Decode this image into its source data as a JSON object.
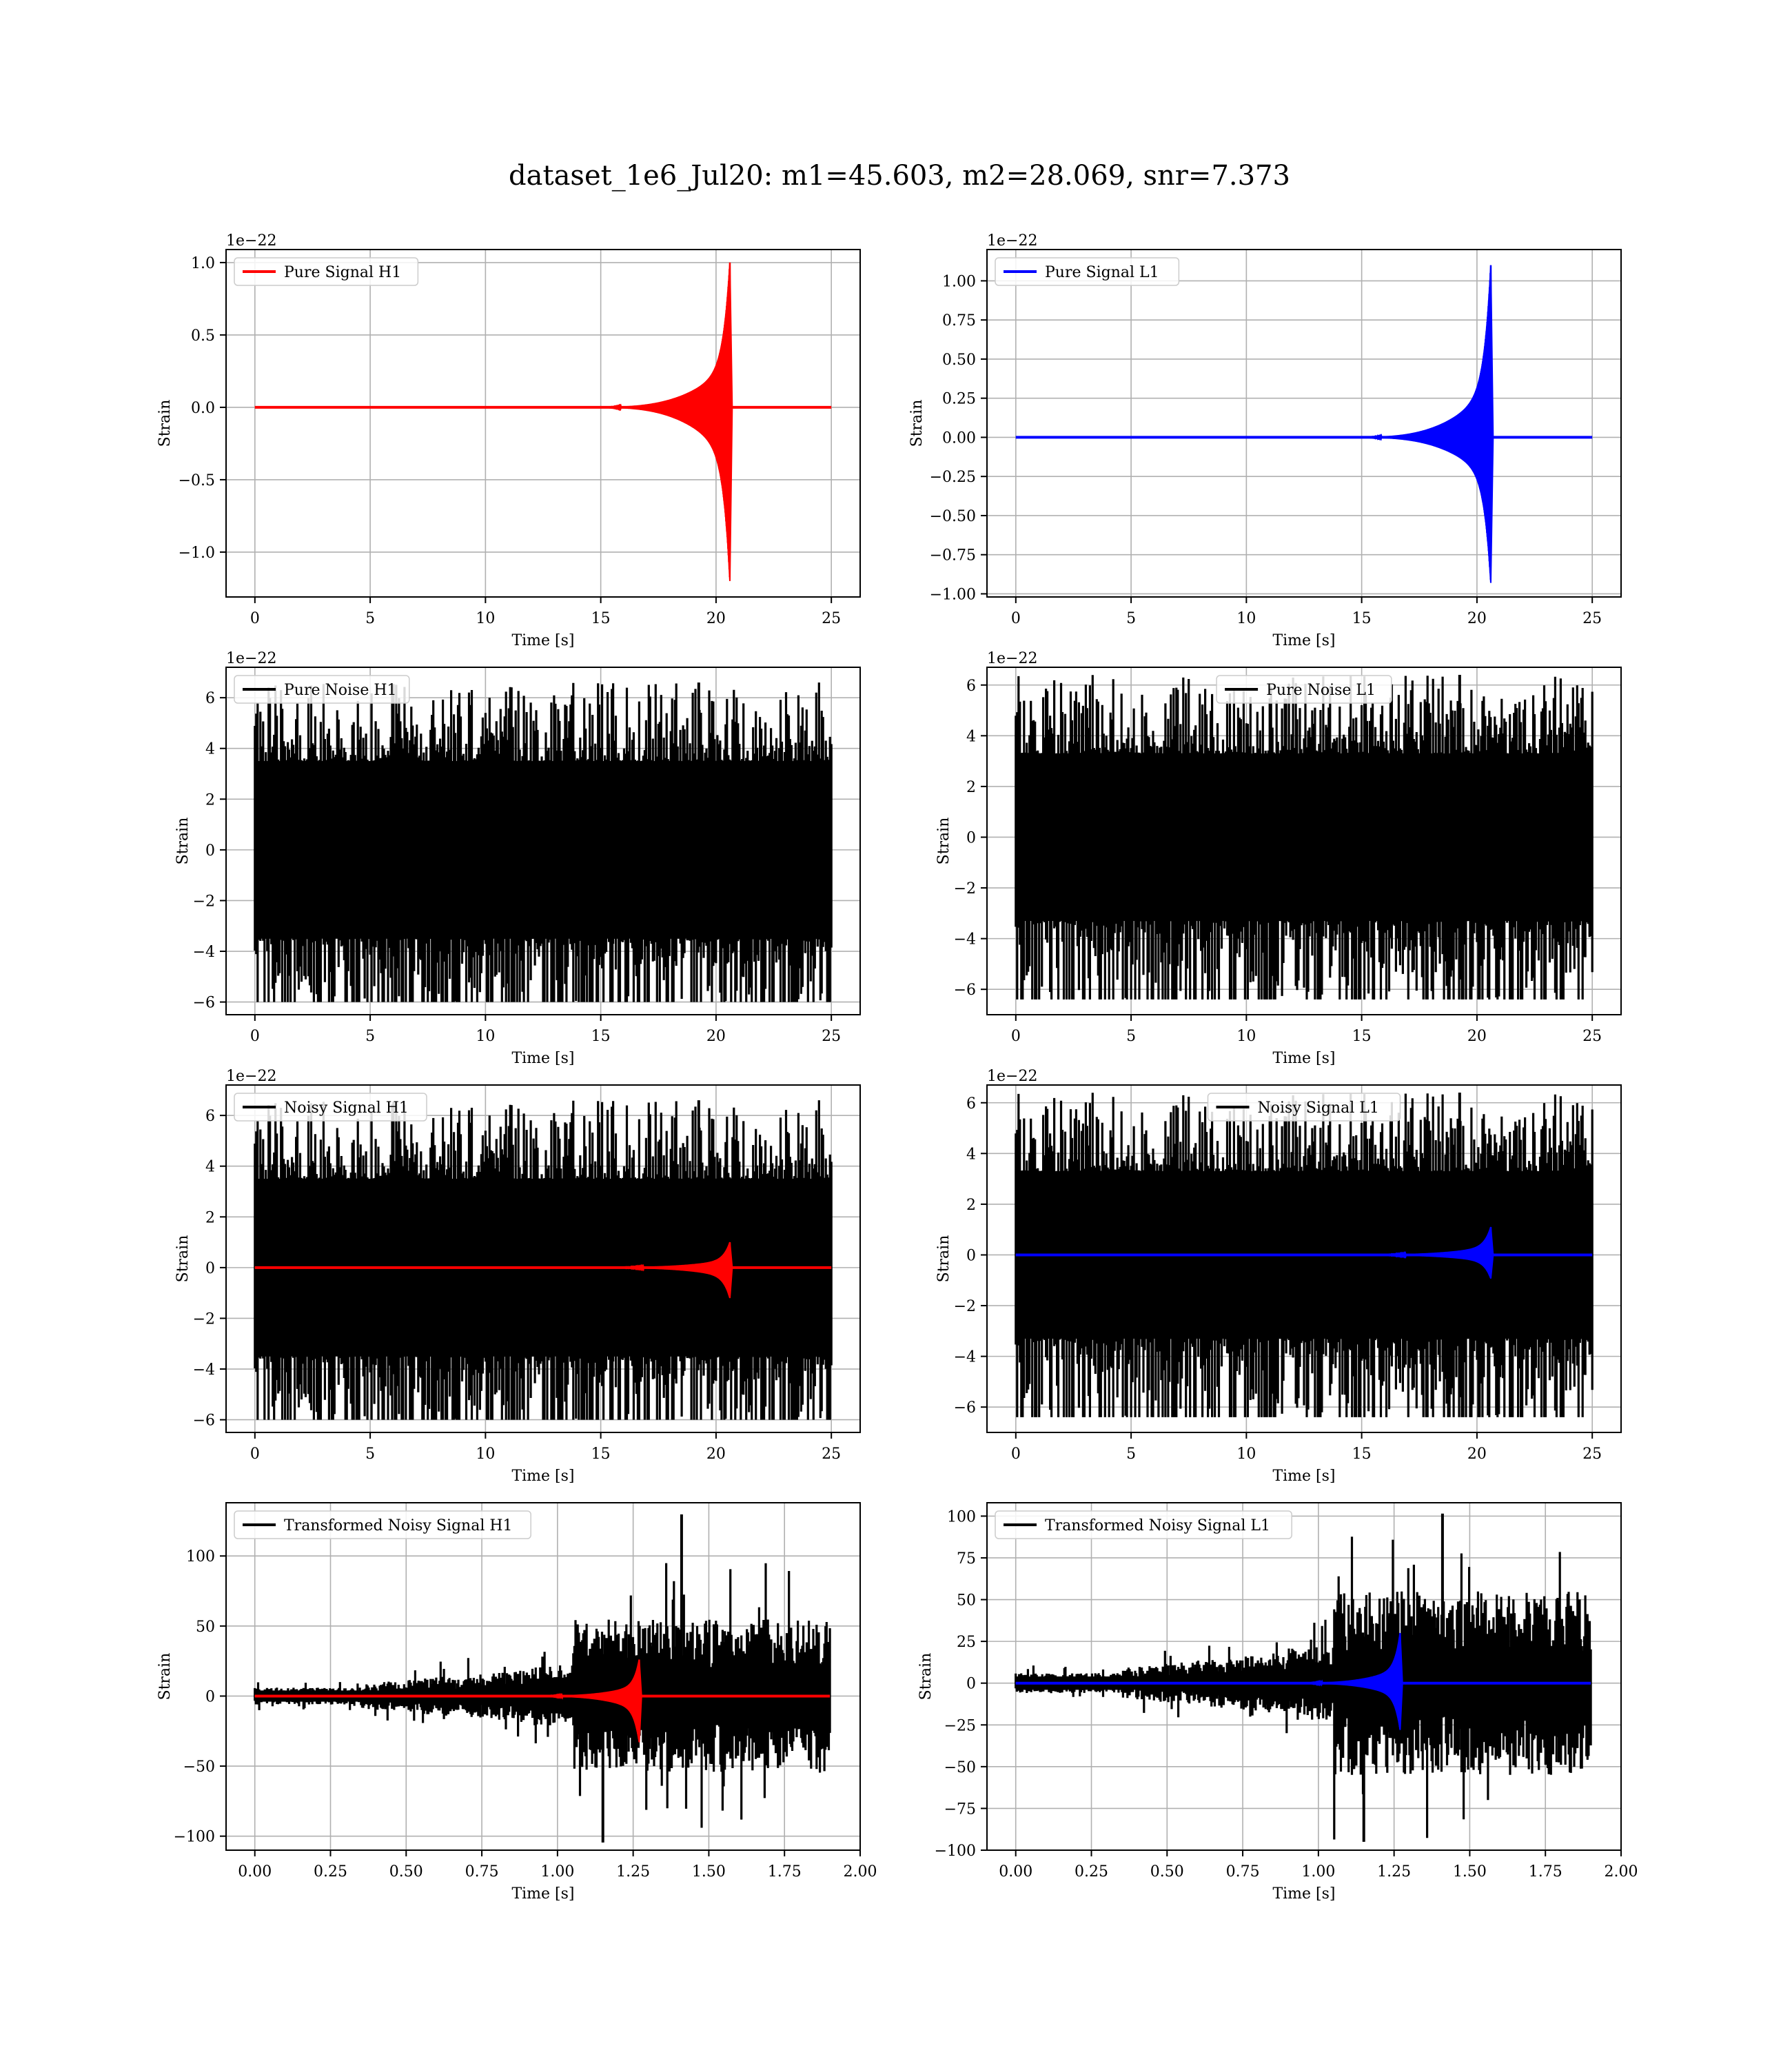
{
  "figure": {
    "title": "dataset_1e6_Jul20: m1=45.603, m2=28.069, snr=7.373"
  },
  "colors": {
    "h1": "#ff0000",
    "l1": "#0000ff",
    "noise": "#000000",
    "grid": "#b0b0b0"
  },
  "chart_data": [
    {
      "type": "line",
      "legend": "Pure Signal H1",
      "legend_placement": "upper-left",
      "xlabel": "Time [s]",
      "ylabel": "Strain",
      "offset_text": "1e−22",
      "xlim": [
        -1.25,
        26.25
      ],
      "ylim": [
        -1.31,
        1.09
      ],
      "xticks": [
        0,
        5,
        10,
        15,
        20,
        25
      ],
      "xtick_labels": [
        "0",
        "5",
        "10",
        "15",
        "20",
        "25"
      ],
      "yticks": [
        -1.0,
        -0.5,
        0.0,
        0.5,
        1.0
      ],
      "ytick_labels": [
        "−1.0",
        "−0.5",
        "0.0",
        "0.5",
        "1.0"
      ],
      "grid": true,
      "series": [
        {
          "name": "Pure Signal H1",
          "color": "#ff0000",
          "kind": "chirp",
          "x_range": [
            0,
            25
          ],
          "t_start": 14.5,
          "t_merge": 20.6,
          "peak_pos": 1.0,
          "peak_neg": -1.2,
          "seed": 11
        }
      ]
    },
    {
      "type": "line",
      "legend": "Pure Signal L1",
      "legend_placement": "upper-left",
      "xlabel": "Time [s]",
      "ylabel": "Strain",
      "offset_text": "1e−22",
      "xlim": [
        -1.25,
        26.25
      ],
      "ylim": [
        -1.02,
        1.2
      ],
      "xticks": [
        0,
        5,
        10,
        15,
        20,
        25
      ],
      "xtick_labels": [
        "0",
        "5",
        "10",
        "15",
        "20",
        "25"
      ],
      "yticks": [
        -1.0,
        -0.75,
        -0.5,
        -0.25,
        0.0,
        0.25,
        0.5,
        0.75,
        1.0
      ],
      "ytick_labels": [
        "−1.00",
        "−0.75",
        "−0.50",
        "−0.25",
        "0.00",
        "0.25",
        "0.50",
        "0.75",
        "1.00"
      ],
      "grid": true,
      "series": [
        {
          "name": "Pure Signal L1",
          "color": "#0000ff",
          "kind": "chirp",
          "x_range": [
            0,
            25
          ],
          "t_start": 14.5,
          "t_merge": 20.6,
          "peak_pos": 1.1,
          "peak_neg": -0.93,
          "seed": 12
        }
      ]
    },
    {
      "type": "line",
      "legend": "Pure Noise H1",
      "legend_placement": "upper-left",
      "xlabel": "Time [s]",
      "ylabel": "Strain",
      "offset_text": "1e−22",
      "xlim": [
        -1.25,
        26.25
      ],
      "ylim": [
        -6.5,
        7.2
      ],
      "xticks": [
        0,
        5,
        10,
        15,
        20,
        25
      ],
      "xtick_labels": [
        "0",
        "5",
        "10",
        "15",
        "20",
        "25"
      ],
      "yticks": [
        -6,
        -4,
        -2,
        0,
        2,
        4,
        6
      ],
      "ytick_labels": [
        "−6",
        "−4",
        "−2",
        "0",
        "2",
        "4",
        "6"
      ],
      "grid": true,
      "series": [
        {
          "name": "Pure Noise H1",
          "color": "#000000",
          "kind": "noise",
          "x_range": [
            0,
            25
          ],
          "core_amp": 3.5,
          "max_pos": 6.6,
          "max_neg": -6.0,
          "seed": 21
        }
      ]
    },
    {
      "type": "line",
      "legend": "Pure Noise L1",
      "legend_placement": "upper-center",
      "xlabel": "Time [s]",
      "ylabel": "Strain",
      "offset_text": "1e−22",
      "xlim": [
        -1.25,
        26.25
      ],
      "ylim": [
        -7.0,
        6.7
      ],
      "xticks": [
        0,
        5,
        10,
        15,
        20,
        25
      ],
      "xtick_labels": [
        "0",
        "5",
        "10",
        "15",
        "20",
        "25"
      ],
      "yticks": [
        -6,
        -4,
        -2,
        0,
        2,
        4,
        6
      ],
      "ytick_labels": [
        "−6",
        "−4",
        "−2",
        "0",
        "2",
        "4",
        "6"
      ],
      "grid": true,
      "series": [
        {
          "name": "Pure Noise L1",
          "color": "#000000",
          "kind": "noise",
          "x_range": [
            0,
            25
          ],
          "core_amp": 3.3,
          "max_pos": 6.4,
          "max_neg": -6.4,
          "seed": 22
        }
      ]
    },
    {
      "type": "line",
      "legend": "Noisy Signal H1",
      "legend_placement": "upper-left",
      "xlabel": "Time [s]",
      "ylabel": "Strain",
      "offset_text": "1e−22",
      "xlim": [
        -1.25,
        26.25
      ],
      "ylim": [
        -6.5,
        7.2
      ],
      "xticks": [
        0,
        5,
        10,
        15,
        20,
        25
      ],
      "xtick_labels": [
        "0",
        "5",
        "10",
        "15",
        "20",
        "25"
      ],
      "yticks": [
        -6,
        -4,
        -2,
        0,
        2,
        4,
        6
      ],
      "ytick_labels": [
        "−6",
        "−4",
        "−2",
        "0",
        "2",
        "4",
        "6"
      ],
      "grid": true,
      "series": [
        {
          "name": "Noisy Signal H1",
          "color": "#000000",
          "kind": "noise",
          "x_range": [
            0,
            25
          ],
          "core_amp": 3.5,
          "max_pos": 6.6,
          "max_neg": -6.0,
          "seed": 21
        },
        {
          "color": "#ff0000",
          "kind": "chirp",
          "x_range": [
            0,
            25
          ],
          "t_start": 14.5,
          "t_merge": 20.6,
          "peak_pos": 1.0,
          "peak_neg": -1.2,
          "seed": 11
        }
      ]
    },
    {
      "type": "line",
      "legend": "Noisy Signal L1",
      "legend_placement": "upper-center",
      "xlabel": "Time [s]",
      "ylabel": "Strain",
      "offset_text": "1e−22",
      "xlim": [
        -1.25,
        26.25
      ],
      "ylim": [
        -7.0,
        6.7
      ],
      "xticks": [
        0,
        5,
        10,
        15,
        20,
        25
      ],
      "xtick_labels": [
        "0",
        "5",
        "10",
        "15",
        "20",
        "25"
      ],
      "yticks": [
        -6,
        -4,
        -2,
        0,
        2,
        4,
        6
      ],
      "ytick_labels": [
        "−6",
        "−4",
        "−2",
        "0",
        "2",
        "4",
        "6"
      ],
      "grid": true,
      "series": [
        {
          "name": "Noisy Signal L1",
          "color": "#000000",
          "kind": "noise",
          "x_range": [
            0,
            25
          ],
          "core_amp": 3.3,
          "max_pos": 6.4,
          "max_neg": -6.4,
          "seed": 22
        },
        {
          "color": "#0000ff",
          "kind": "chirp",
          "x_range": [
            0,
            25
          ],
          "t_start": 14.5,
          "t_merge": 20.6,
          "peak_pos": 1.1,
          "peak_neg": -0.93,
          "seed": 12
        }
      ]
    },
    {
      "type": "line",
      "legend": "Transformed Noisy Signal H1",
      "legend_placement": "upper-left",
      "xlabel": "Time [s]",
      "ylabel": "Strain",
      "offset_text": "",
      "xlim": [
        -0.095,
        2.0
      ],
      "ylim": [
        -110,
        138
      ],
      "xticks": [
        0,
        0.25,
        0.5,
        0.75,
        1.0,
        1.25,
        1.5,
        1.75,
        2.0
      ],
      "xtick_labels": [
        "0.00",
        "0.25",
        "0.50",
        "0.75",
        "1.00",
        "1.25",
        "1.50",
        "1.75",
        "2.00"
      ],
      "yticks": [
        -100,
        -50,
        0,
        50,
        100
      ],
      "ytick_labels": [
        "−100",
        "−50",
        "0",
        "50",
        "100"
      ],
      "grid": true,
      "series": [
        {
          "name": "Transformed Noisy Signal H1",
          "color": "#000000",
          "kind": "whitened",
          "x_range": [
            0,
            1.9
          ],
          "seed": 31
        },
        {
          "color": "#ff0000",
          "kind": "chirp",
          "x_range": [
            0,
            1.9
          ],
          "t_start": 0.9,
          "t_merge": 1.27,
          "peak_pos": 26,
          "peak_neg": -33,
          "seed": 41
        }
      ]
    },
    {
      "type": "line",
      "legend": "Transformed Noisy Signal L1",
      "legend_placement": "upper-left",
      "xlabel": "Time [s]",
      "ylabel": "Strain",
      "offset_text": "",
      "xlim": [
        -0.095,
        2.0
      ],
      "ylim": [
        -100,
        108
      ],
      "xticks": [
        0,
        0.25,
        0.5,
        0.75,
        1.0,
        1.25,
        1.5,
        1.75,
        2.0
      ],
      "xtick_labels": [
        "0.00",
        "0.25",
        "0.50",
        "0.75",
        "1.00",
        "1.25",
        "1.50",
        "1.75",
        "2.00"
      ],
      "yticks": [
        -100,
        -75,
        -50,
        -25,
        0,
        25,
        50,
        75,
        100
      ],
      "ytick_labels": [
        "−100",
        "−75",
        "−50",
        "−25",
        "0",
        "25",
        "50",
        "75",
        "100"
      ],
      "grid": true,
      "series": [
        {
          "name": "Transformed Noisy Signal L1",
          "color": "#000000",
          "kind": "whitened",
          "x_range": [
            0,
            1.9
          ],
          "seed": 32
        },
        {
          "color": "#0000ff",
          "kind": "chirp",
          "x_range": [
            0,
            1.9
          ],
          "t_start": 0.9,
          "t_merge": 1.27,
          "peak_pos": 30,
          "peak_neg": -28,
          "seed": 42
        }
      ]
    }
  ]
}
